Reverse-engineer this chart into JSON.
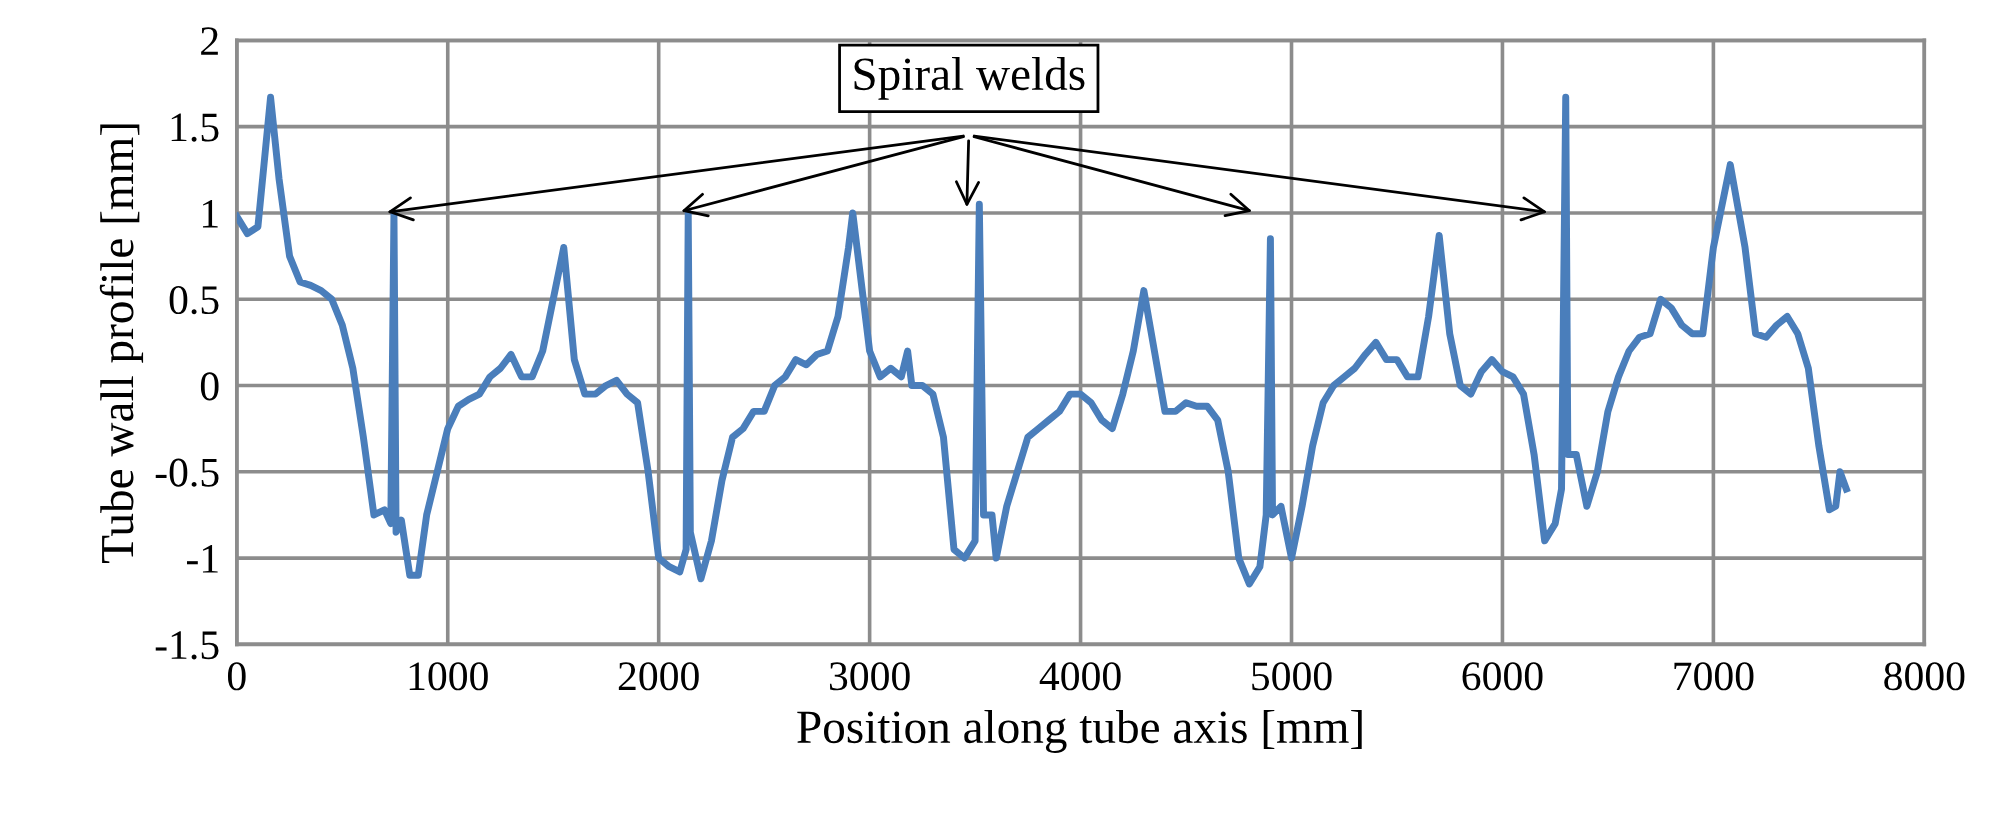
{
  "chart_data": {
    "type": "line",
    "xlabel": "Position along tube axis [mm]",
    "ylabel": "Tube wall profile [mm]",
    "annotations": [
      {
        "text": "Spiral welds",
        "x": 3520,
        "y": 1.0
      }
    ],
    "xlim": [
      0,
      8000
    ],
    "ylim": [
      -1.5,
      2
    ],
    "xticks": [
      0,
      1000,
      2000,
      3000,
      4000,
      5000,
      6000,
      7000,
      8000
    ],
    "yticks": [
      -1.5,
      -1,
      -0.5,
      0,
      0.5,
      1,
      1.5,
      2
    ],
    "grid": true,
    "marker": "none",
    "line_style": "solid",
    "series": [
      {
        "color": "#4a7ebb",
        "x": [
          0,
          50,
          100,
          160,
          200,
          250,
          300,
          350,
          400,
          450,
          500,
          550,
          600,
          650,
          700,
          730,
          745,
          755,
          780,
          820,
          860,
          900,
          950,
          1000,
          1050,
          1100,
          1150,
          1200,
          1250,
          1300,
          1350,
          1400,
          1450,
          1500,
          1550,
          1600,
          1650,
          1700,
          1750,
          1800,
          1850,
          1900,
          1950,
          2000,
          2050,
          2100,
          2130,
          2140,
          2150,
          2200,
          2250,
          2300,
          2350,
          2400,
          2450,
          2500,
          2550,
          2600,
          2650,
          2700,
          2750,
          2800,
          2850,
          2900,
          2920,
          2950,
          3000,
          3050,
          3100,
          3150,
          3180,
          3200,
          3250,
          3300,
          3350,
          3400,
          3450,
          3500,
          3520,
          3540,
          3580,
          3600,
          3650,
          3700,
          3750,
          3800,
          3850,
          3900,
          3950,
          4000,
          4050,
          4100,
          4150,
          4200,
          4250,
          4300,
          4350,
          4400,
          4450,
          4500,
          4550,
          4600,
          4650,
          4700,
          4750,
          4800,
          4850,
          4880,
          4900,
          4910,
          4950,
          5000,
          5050,
          5100,
          5150,
          5200,
          5250,
          5300,
          5350,
          5400,
          5450,
          5500,
          5550,
          5600,
          5650,
          5700,
          5750,
          5800,
          5850,
          5900,
          5950,
          6000,
          6050,
          6100,
          6150,
          6200,
          6250,
          6280,
          6300,
          6310,
          6350,
          6400,
          6450,
          6500,
          6550,
          6600,
          6650,
          6700,
          6750,
          6800,
          6850,
          6900,
          6950,
          7000,
          7080,
          7150,
          7200,
          7250,
          7300,
          7350,
          7400,
          7450,
          7500,
          7550,
          7580,
          7600,
          7630
        ],
        "values": [
          0.98,
          0.88,
          0.92,
          1.67,
          1.2,
          0.75,
          0.6,
          0.58,
          0.55,
          0.5,
          0.35,
          0.1,
          -0.3,
          -0.75,
          -0.72,
          -0.8,
          1.0,
          -0.85,
          -0.78,
          -1.1,
          -1.1,
          -0.75,
          -0.5,
          -0.25,
          -0.12,
          -0.08,
          -0.05,
          0.05,
          0.1,
          0.18,
          0.05,
          0.05,
          0.2,
          0.5,
          0.8,
          0.15,
          -0.05,
          -0.05,
          0.0,
          0.03,
          -0.05,
          -0.1,
          -0.5,
          -1.0,
          -1.05,
          -1.08,
          -0.95,
          1.0,
          -0.85,
          -1.12,
          -0.9,
          -0.55,
          -0.3,
          -0.25,
          -0.15,
          -0.15,
          0.0,
          0.05,
          0.15,
          0.12,
          0.18,
          0.2,
          0.4,
          0.8,
          1.0,
          0.7,
          0.2,
          0.05,
          0.1,
          0.05,
          0.2,
          0.0,
          0.0,
          -0.05,
          -0.3,
          -0.95,
          -1.0,
          -0.9,
          1.05,
          -0.75,
          -0.75,
          -1.0,
          -0.7,
          -0.5,
          -0.3,
          -0.25,
          -0.2,
          -0.15,
          -0.05,
          -0.05,
          -0.1,
          -0.2,
          -0.25,
          -0.05,
          0.2,
          0.55,
          0.2,
          -0.15,
          -0.15,
          -0.1,
          -0.12,
          -0.12,
          -0.2,
          -0.5,
          -1.0,
          -1.15,
          -1.05,
          -0.75,
          0.85,
          -0.75,
          -0.7,
          -1.0,
          -0.7,
          -0.35,
          -0.1,
          0.0,
          0.05,
          0.1,
          0.18,
          0.25,
          0.15,
          0.15,
          0.05,
          0.05,
          0.4,
          0.87,
          0.3,
          0.0,
          -0.05,
          0.08,
          0.15,
          0.08,
          0.05,
          -0.05,
          -0.4,
          -0.9,
          -0.8,
          -0.6,
          1.67,
          -0.4,
          -0.4,
          -0.7,
          -0.5,
          -0.15,
          0.05,
          0.2,
          0.28,
          0.3,
          0.5,
          0.45,
          0.35,
          0.3,
          0.3,
          0.8,
          1.28,
          0.8,
          0.3,
          0.28,
          0.35,
          0.4,
          0.3,
          0.1,
          -0.35,
          -0.72,
          -0.7,
          -0.5,
          -0.6
        ]
      }
    ]
  }
}
